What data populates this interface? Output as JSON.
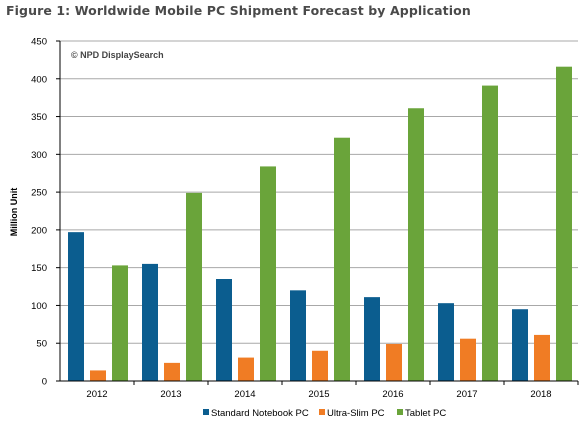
{
  "figure_title": "Figure 1: Worldwide Mobile PC Shipment Forecast by Application",
  "watermark": "© NPD DisplaySearch",
  "colors": {
    "standard_notebook": "#0b5d8f",
    "ultra_slim": "#f07c24",
    "tablet": "#6aa43a",
    "gridline": "#a8a8a8",
    "axis": "#000000"
  },
  "chart_data": {
    "type": "bar",
    "title": "Figure 1: Worldwide Mobile PC Shipment Forecast by Application",
    "xlabel": "",
    "ylabel": "Million Unit",
    "ylim": [
      0,
      450
    ],
    "yticks": [
      0,
      50,
      100,
      150,
      200,
      250,
      300,
      350,
      400,
      450
    ],
    "grid": true,
    "legend_position": "bottom",
    "categories": [
      "2012",
      "2013",
      "2014",
      "2015",
      "2016",
      "2017",
      "2018"
    ],
    "series": [
      {
        "name": "Standard Notebook PC",
        "values": [
          197,
          155,
          135,
          120,
          111,
          103,
          95
        ]
      },
      {
        "name": "Ultra-Slim PC",
        "values": [
          14,
          24,
          31,
          40,
          49,
          56,
          61
        ]
      },
      {
        "name": "Tablet PC",
        "values": [
          153,
          249,
          284,
          322,
          361,
          391,
          416
        ]
      }
    ]
  }
}
